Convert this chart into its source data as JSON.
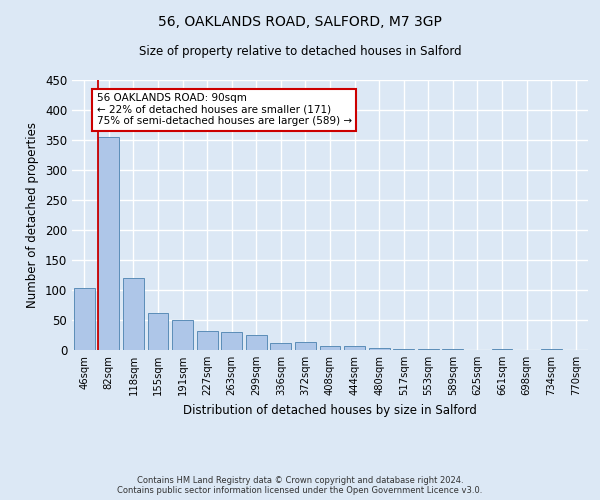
{
  "title_line1": "56, OAKLANDS ROAD, SALFORD, M7 3GP",
  "title_line2": "Size of property relative to detached houses in Salford",
  "xlabel": "Distribution of detached houses by size in Salford",
  "ylabel": "Number of detached properties",
  "bar_labels": [
    "46sqm",
    "82sqm",
    "118sqm",
    "155sqm",
    "191sqm",
    "227sqm",
    "263sqm",
    "299sqm",
    "336sqm",
    "372sqm",
    "408sqm",
    "444sqm",
    "480sqm",
    "517sqm",
    "553sqm",
    "589sqm",
    "625sqm",
    "661sqm",
    "698sqm",
    "734sqm",
    "770sqm"
  ],
  "bar_values": [
    103,
    355,
    120,
    62,
    50,
    31,
    30,
    25,
    11,
    14,
    7,
    7,
    3,
    1,
    1,
    1,
    0,
    2,
    0,
    2,
    0
  ],
  "bar_color": "#aec6e8",
  "bar_edge_color": "#5b8db8",
  "highlight_bar_index": 1,
  "annotation_text_line1": "56 OAKLANDS ROAD: 90sqm",
  "annotation_text_line2": "← 22% of detached houses are smaller (171)",
  "annotation_text_line3": "75% of semi-detached houses are larger (589) →",
  "annotation_box_color": "#ffffff",
  "annotation_box_edge_color": "#cc0000",
  "background_color": "#dce8f5",
  "grid_color": "#ffffff",
  "ylim": [
    0,
    450
  ],
  "yticks": [
    0,
    50,
    100,
    150,
    200,
    250,
    300,
    350,
    400,
    450
  ],
  "footer_line1": "Contains HM Land Registry data © Crown copyright and database right 2024.",
  "footer_line2": "Contains public sector information licensed under the Open Government Licence v3.0."
}
